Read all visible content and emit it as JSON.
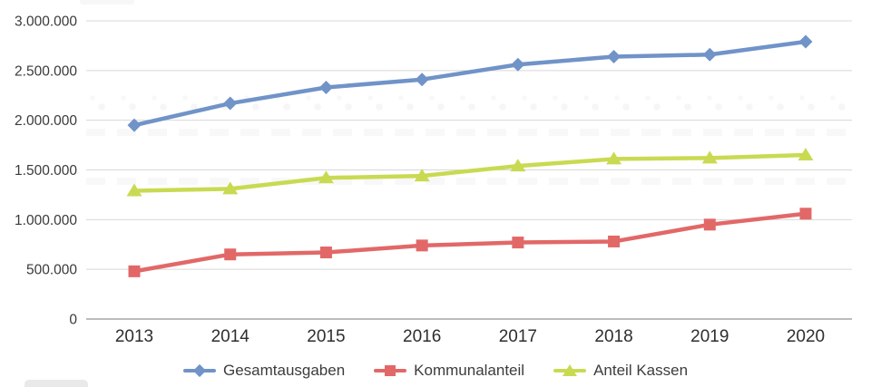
{
  "chart_data": {
    "type": "line",
    "title": "",
    "xlabel": "",
    "ylabel": "",
    "categories": [
      "2013",
      "2014",
      "2015",
      "2016",
      "2017",
      "2018",
      "2019",
      "2020"
    ],
    "series": [
      {
        "name": "Gesamtausgaben",
        "color": "#7093c8",
        "marker": "diamond",
        "values": [
          1950000,
          2170000,
          2330000,
          2410000,
          2560000,
          2640000,
          2660000,
          2790000
        ]
      },
      {
        "name": "Kommunalanteil",
        "color": "#e26868",
        "marker": "square",
        "values": [
          480000,
          650000,
          670000,
          740000,
          770000,
          780000,
          950000,
          1060000
        ]
      },
      {
        "name": "Anteil Kassen",
        "color": "#c9da52",
        "marker": "triangle",
        "values": [
          1290000,
          1310000,
          1420000,
          1440000,
          1540000,
          1610000,
          1620000,
          1650000
        ]
      }
    ],
    "ylim": [
      0,
      3000000
    ],
    "y_ticks": [
      {
        "value": 0,
        "label": "0"
      },
      {
        "value": 500000,
        "label": "500.000"
      },
      {
        "value": 1000000,
        "label": "1.000.000"
      },
      {
        "value": 1500000,
        "label": "1.500.000"
      },
      {
        "value": 2000000,
        "label": "2.000.000"
      },
      {
        "value": 2500000,
        "label": "2.500.000"
      },
      {
        "value": 3000000,
        "label": "3.000.000"
      }
    ],
    "grid": "horizontal",
    "legend_position": "bottom",
    "colors": {
      "grid": "#d8d8d8",
      "axis": "#a6a6a6",
      "tick_text": "#3a3a3a"
    }
  }
}
